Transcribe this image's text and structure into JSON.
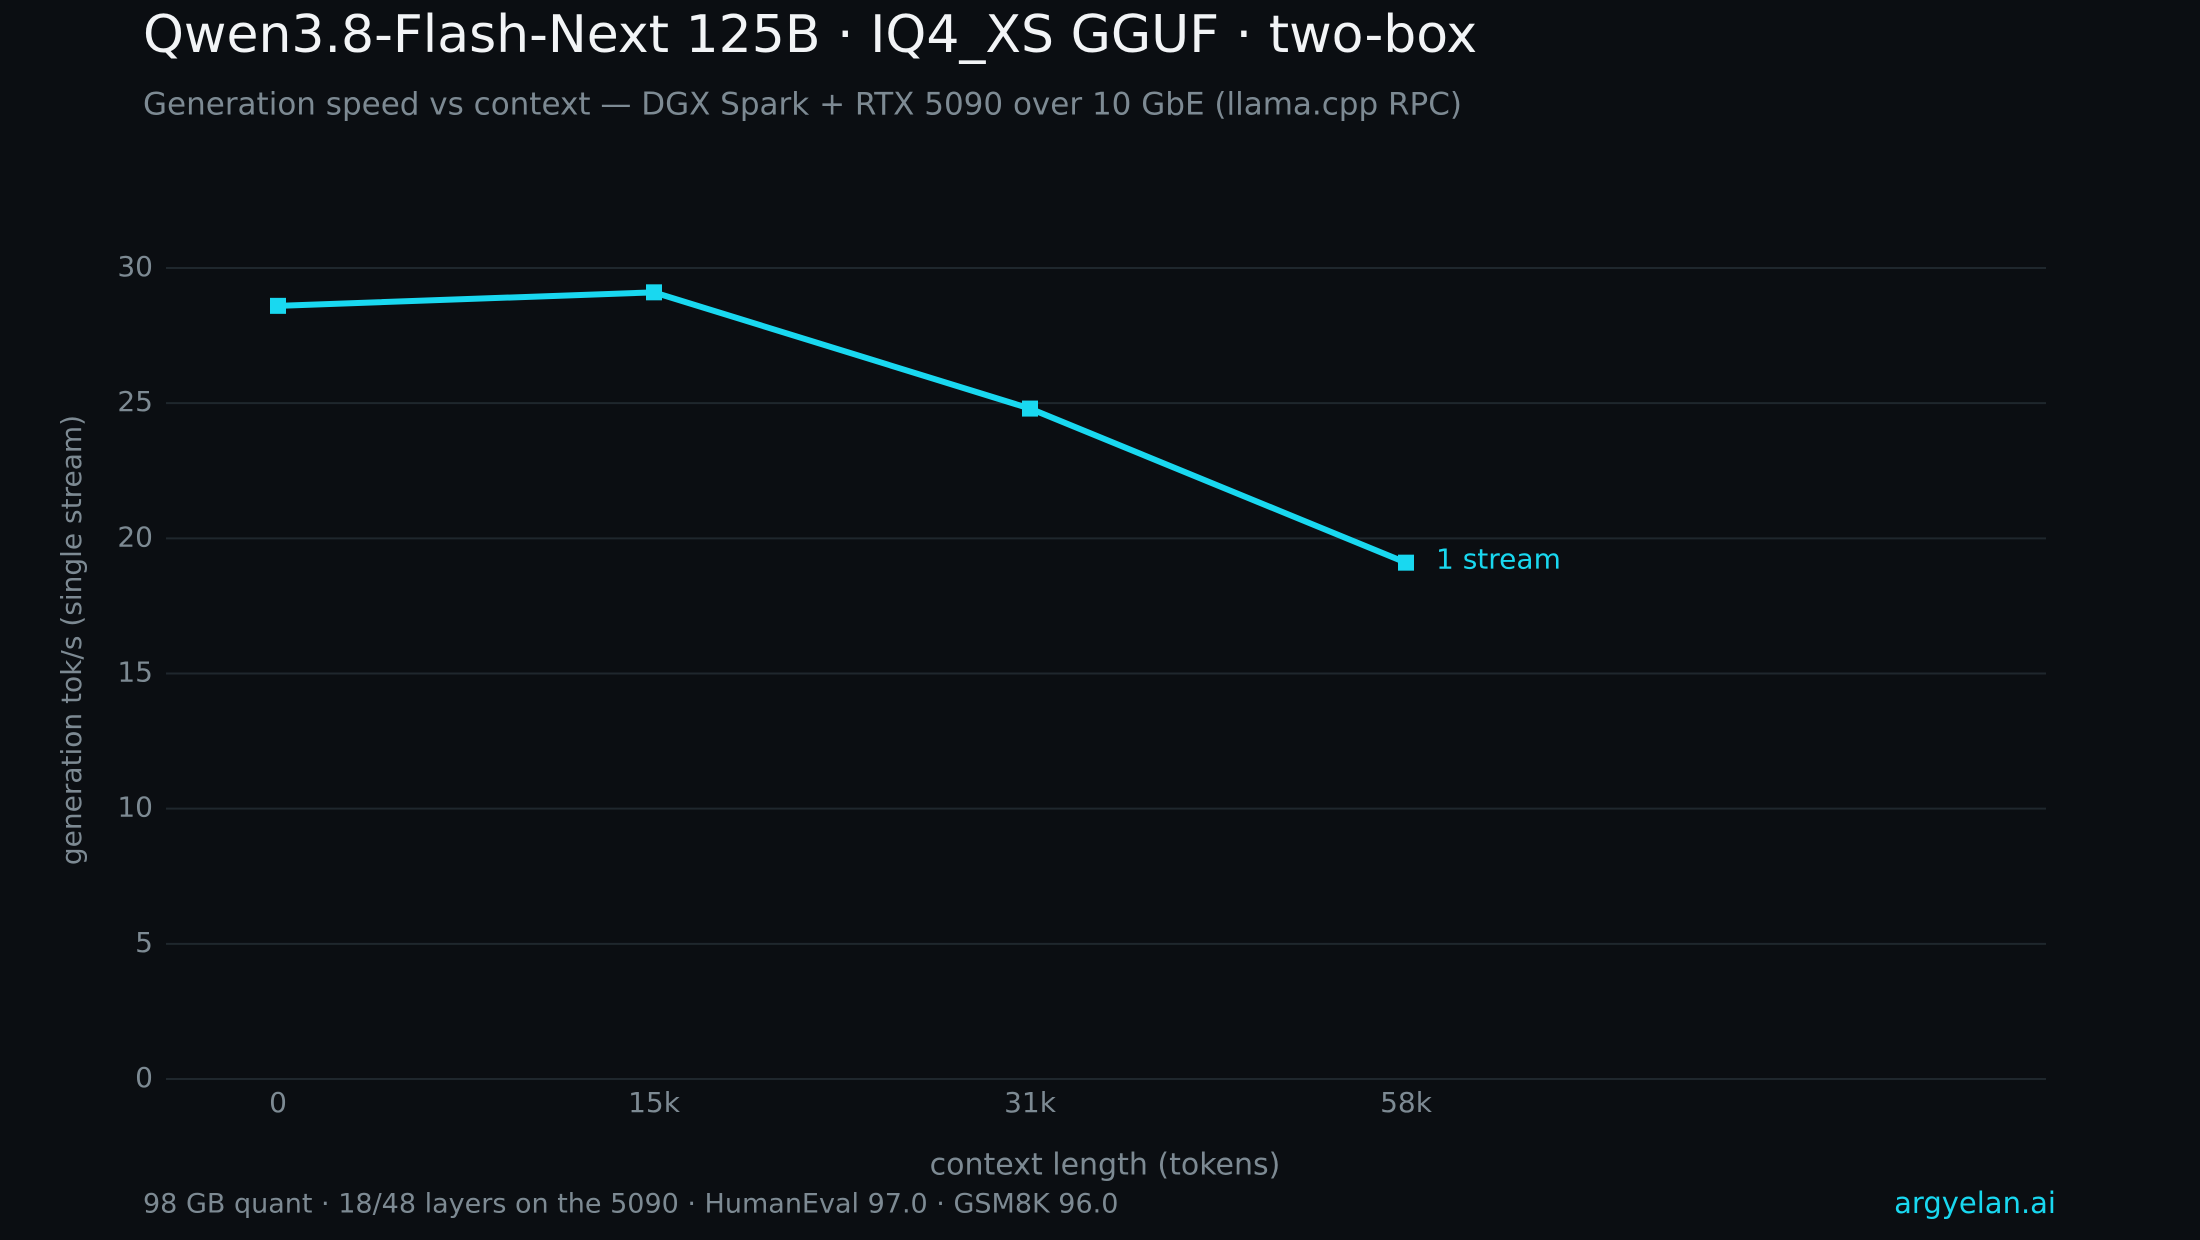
{
  "chart_data": {
    "type": "line",
    "title": "Qwen3.8-Flash-Next 125B · IQ4_XS GGUF · two-box",
    "subtitle": "Generation speed vs context — DGX Spark + RTX 5090 over 10 GbE (llama.cpp RPC)",
    "x_label": "context length (tokens)",
    "y_label": "generation  tok/s  (single stream)",
    "categories": [
      "0",
      "15k",
      "31k",
      "58k"
    ],
    "series": [
      {
        "name": "1 stream",
        "color": "#19d8f0",
        "values": [
          28.6,
          29.1,
          24.8,
          19.1
        ]
      }
    ],
    "ylim": [
      0,
      30
    ],
    "yticks": [
      0,
      5,
      10,
      15,
      20,
      25,
      30
    ],
    "grid": true,
    "footer": "98 GB quant · 18/48 layers on the 5090 · HumanEval 97.0 · GSM8K 96.0",
    "brand": "argyelan.ai"
  }
}
